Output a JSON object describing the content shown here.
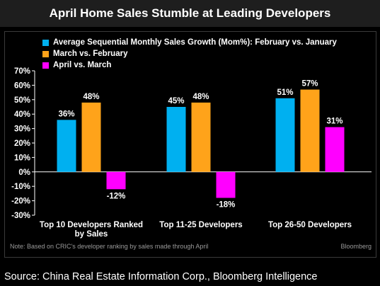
{
  "header": {
    "title": "April Home Sales Stumble at Leading Developers"
  },
  "footer": {
    "note": "Note: Based on CRIC's developer ranking by sales made through April",
    "brand": "Bloomberg",
    "source": "Source: China Real Estate Information Corp., Bloomberg Intelligence"
  },
  "colors": {
    "feb_vs_jan": "#00b0f0",
    "mar_vs_feb": "#ffa31a",
    "apr_vs_mar": "#ff00ff"
  },
  "chart_data": {
    "type": "bar",
    "title": "April Home Sales Stumble at Leading Developers",
    "categories": [
      "Top 10 Developers Ranked by Sales",
      "Top 11-25 Developers",
      "Top 26-50 Developers"
    ],
    "category_lines": [
      [
        "Top 10 Developers Ranked",
        "by Sales"
      ],
      [
        "Top 11-25 Developers"
      ],
      [
        "Top 26-50 Developers"
      ]
    ],
    "series": [
      {
        "name": "Average Sequential Monthly Sales Growth (Mom%): February vs. January",
        "values": [
          36,
          45,
          51
        ],
        "labels": [
          "36%",
          "45%",
          "51%"
        ]
      },
      {
        "name": "March vs. February",
        "values": [
          48,
          48,
          57
        ],
        "labels": [
          "48%",
          "48%",
          "57%"
        ]
      },
      {
        "name": "April vs. March",
        "values": [
          -12,
          -18,
          31
        ],
        "labels": [
          "-12%",
          "-18%",
          "31%"
        ]
      }
    ],
    "ylim": [
      -30,
      70
    ],
    "yticks": [
      70,
      60,
      50,
      40,
      30,
      20,
      10,
      0,
      -10,
      -20,
      -30
    ],
    "ytick_labels": [
      "70%",
      "60%",
      "50%",
      "40%",
      "30%",
      "20%",
      "10%",
      "0%",
      "-10%",
      "-20%",
      "-30%"
    ],
    "xlabel": "",
    "ylabel": "",
    "grid": false,
    "legend": "top-left"
  }
}
